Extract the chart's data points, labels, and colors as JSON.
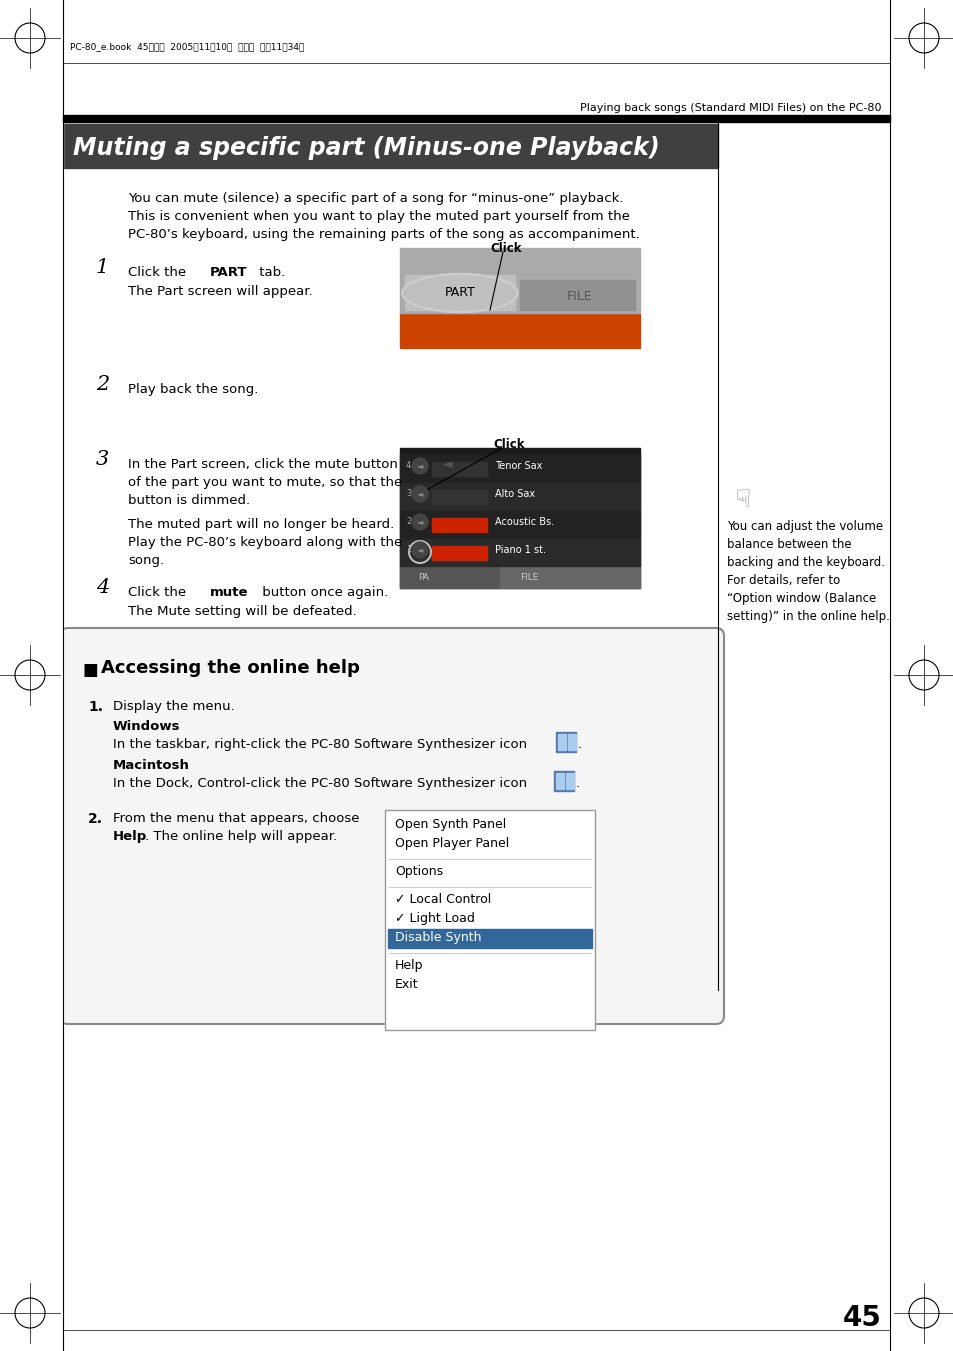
{
  "page_bg": "#ffffff",
  "page_num": "45",
  "header_right": "Playing back songs (Standard MIDI Files) on the PC-80",
  "header_meta": "PC-80_e.book  45ページ  2005年11月10日  木曜日  午前11時34分",
  "section_title": "Muting a specific part (Minus-one Playback)",
  "intro_lines": [
    "You can mute (silence) a specific part of a song for “minus-one” playback.",
    "This is convenient when you want to play the muted part yourself from the",
    "PC-80’s keyboard, using the remaining parts of the song as accompaniment."
  ],
  "note_lines": [
    "You can adjust the volume",
    "balance between the",
    "backing and the keyboard.",
    "For details, refer to",
    "“Option window (Balance",
    "setting)” in the online help."
  ],
  "menu_items": [
    {
      "text": "Open Synth Panel",
      "type": "normal"
    },
    {
      "text": "Open Player Panel",
      "type": "normal"
    },
    {
      "type": "sep"
    },
    {
      "text": "Options",
      "type": "normal"
    },
    {
      "type": "sep"
    },
    {
      "text": "✓ Local Control",
      "type": "normal"
    },
    {
      "text": "✓ Light Load",
      "type": "normal"
    },
    {
      "text": "Disable Synth",
      "type": "highlight"
    },
    {
      "type": "sep"
    },
    {
      "text": "Help",
      "type": "normal"
    },
    {
      "text": "Exit",
      "type": "normal"
    }
  ],
  "instruments": [
    "Piano 1 st.",
    "Acoustic Bs.",
    "Alto Sax",
    "Tenor Sax"
  ],
  "inst_colors": [
    "#cc2200",
    "#cc2200",
    "#333333",
    "#333333"
  ]
}
